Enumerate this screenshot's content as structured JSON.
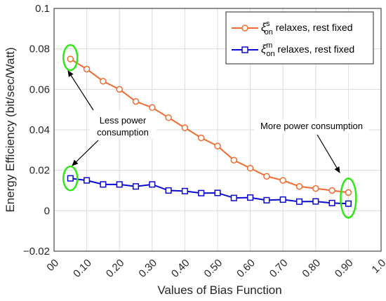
{
  "chart_data": {
    "type": "line",
    "xlabel": "Values of Bias Function",
    "ylabel": "Energy Efficiency (bit/sec/Watt)",
    "xlim": [
      0,
      1.0
    ],
    "ylim": [
      -0.02,
      0.1
    ],
    "grid": true,
    "legend_position": "top-right",
    "x_ticks": [
      0,
      0.1,
      0.2,
      0.3,
      0.4,
      0.5,
      0.6,
      0.7,
      0.8,
      0.9,
      1.0
    ],
    "x_tick_labels": [
      "00",
      "0.10",
      "0.20",
      "0.30",
      "0.40",
      "0.50",
      "0.60",
      "0.70",
      "0.80",
      "0.90",
      "1.0"
    ],
    "y_ticks": [
      -0.02,
      0,
      0.02,
      0.04,
      0.06,
      0.08,
      0.1
    ],
    "y_tick_labels": [
      "−0.02",
      "0",
      "0.02",
      "0.04",
      "0.06",
      "0.08",
      "0.1"
    ],
    "x": [
      0.05,
      0.1,
      0.15,
      0.2,
      0.25,
      0.3,
      0.35,
      0.4,
      0.45,
      0.5,
      0.55,
      0.6,
      0.65,
      0.7,
      0.75,
      0.8,
      0.85,
      0.9
    ],
    "series": [
      {
        "legend_symbol": "ξ",
        "legend_sup": "s",
        "legend_sub": "on",
        "legend_suffix": " relaxes, rest fixed",
        "color": "#f26b2e",
        "marker": "circle",
        "values": [
          0.075,
          0.07,
          0.064,
          0.06,
          0.054,
          0.051,
          0.046,
          0.041,
          0.036,
          0.032,
          0.025,
          0.021,
          0.017,
          0.015,
          0.012,
          0.011,
          0.01,
          0.009
        ]
      },
      {
        "legend_symbol": "ξ",
        "legend_sup": "m",
        "legend_sub": "on",
        "legend_suffix": " relaxes, rest fixed",
        "color": "#0a0ad2",
        "marker": "square",
        "values": [
          0.016,
          0.015,
          0.013,
          0.013,
          0.012,
          0.013,
          0.01,
          0.0097,
          0.0087,
          0.0088,
          0.0063,
          0.0065,
          0.0052,
          0.0055,
          0.0045,
          0.0046,
          0.0038,
          0.0035
        ]
      }
    ],
    "annotations": {
      "less_power_line1": "Less power",
      "less_power_line2": "consumption",
      "more_power": "More power consumption"
    },
    "highlight_color": "#33e61a"
  }
}
